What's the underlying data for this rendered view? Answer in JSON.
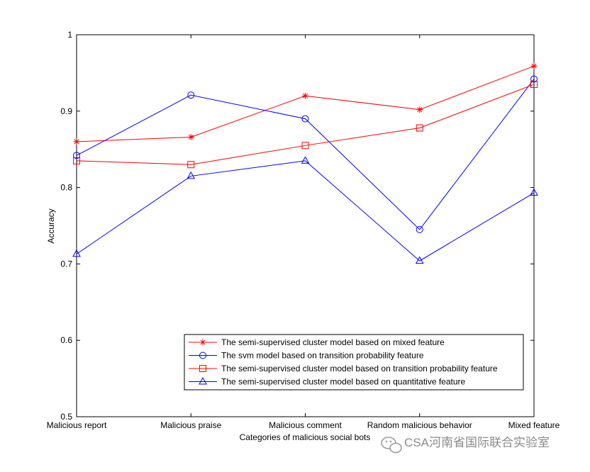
{
  "chart_data": {
    "type": "line",
    "title": "",
    "xlabel": "Categories of malicious social bots",
    "ylabel": "Accuracy",
    "categories": [
      "Malicious report",
      "Malicious praise",
      "Malicious comment",
      "Random malicious behavior",
      "Mixed feature"
    ],
    "ylim": [
      0.5,
      1.0
    ],
    "yticks": [
      "0.5",
      "0.6",
      "0.7",
      "0.8",
      "0.9",
      "1"
    ],
    "grid": false,
    "legend_position": "bottom-right",
    "series": [
      {
        "name": "The semi-supervised cluster model based on mixed feature",
        "color": "#ff0000",
        "marker": "star",
        "values": [
          0.86,
          0.866,
          0.92,
          0.902,
          0.959
        ]
      },
      {
        "name": "The svm model based on transition probability feature",
        "color": "#0000ff",
        "marker": "circle",
        "values": [
          0.842,
          0.921,
          0.89,
          0.745,
          0.942
        ]
      },
      {
        "name": "The semi-supervised cluster model based on transition probability feature",
        "color": "#ff0000",
        "marker": "square",
        "values": [
          0.835,
          0.83,
          0.855,
          0.878,
          0.935
        ]
      },
      {
        "name": "The semi-supervised cluster model based on quantitative feature",
        "color": "#0000ff",
        "marker": "triangle",
        "values": [
          0.713,
          0.815,
          0.835,
          0.704,
          0.793
        ]
      }
    ]
  },
  "watermark": {
    "text": "CSA河南省国际联合实验室",
    "icon": "wechat-icon"
  }
}
